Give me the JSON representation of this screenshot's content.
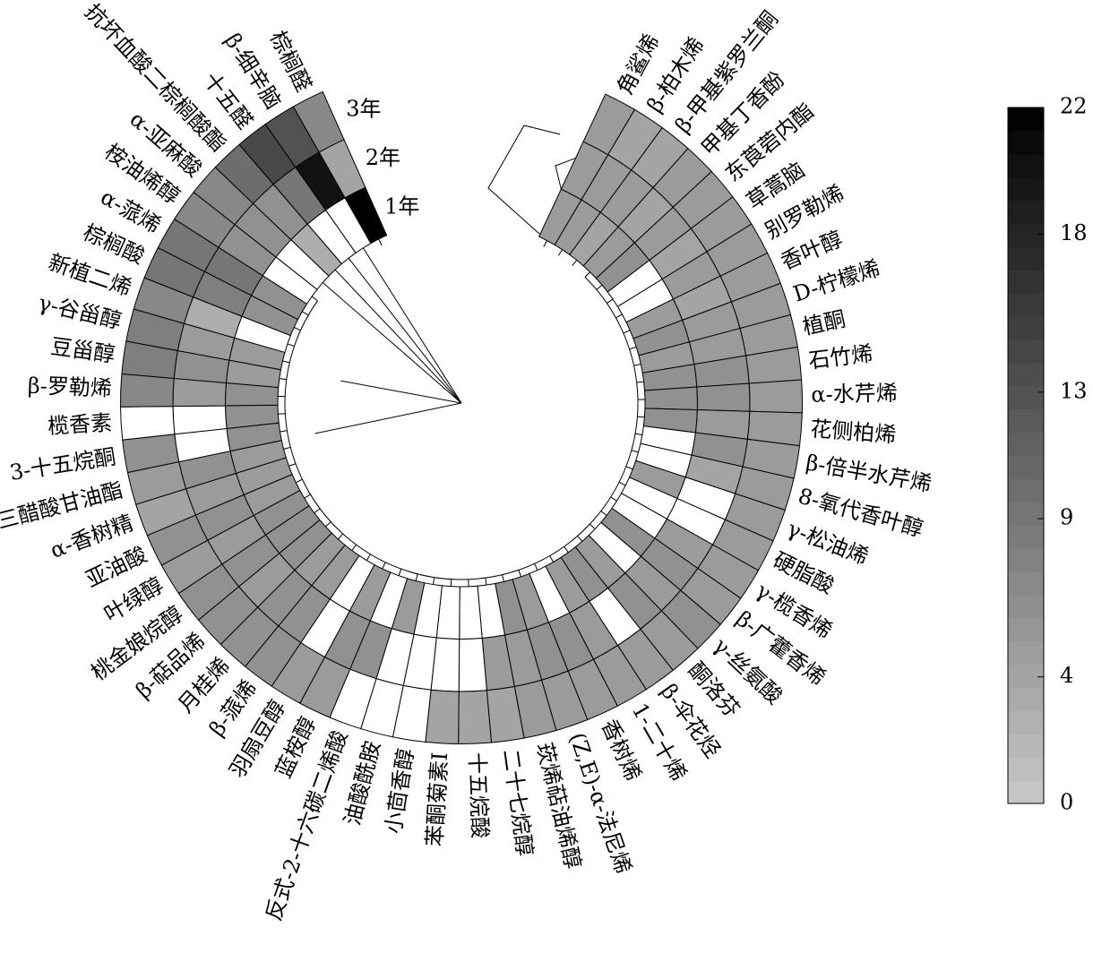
{
  "chart_data": {
    "type": "circular-heatmap",
    "categories": [
      "角鲨烯",
      "β-柏木烯",
      "β-甲基紫罗兰酮",
      "甲基丁香酚",
      "东莨菪内酯",
      "草蒿脑",
      "别罗勒烯",
      "香叶醇",
      "D-柠檬烯",
      "植酮",
      "石竹烯",
      "α-水芹烯",
      "花侧柏烯",
      "β-倍半水芹烯",
      "8-氧代香叶醇",
      "γ-松油烯",
      "硬脂酸",
      "γ-榄香烯",
      "β-广藿香烯",
      "γ-丝氨酸",
      "酮洛芬",
      "β-伞花烃",
      "1-二十烯",
      "香树烯",
      "(Z,E)-α-法尼烯",
      "莰烯萜油烯醇",
      "二十七烷醇",
      "十五烷酸",
      "苯酮菊素I",
      "小茴香醇",
      "油酸酰胺",
      "反式-2-十六碳二烯酸",
      "蓝桉醇",
      "羽扇豆醇",
      "β-蒎烯",
      "月桂烯",
      "β-萜品烯",
      "桃金娘烷醇",
      "叶绿醇",
      "亚油酸",
      "α-香树精",
      "三醋酸甘油酯",
      "3-十五烷酮",
      "榄香素",
      "β-罗勒烯",
      "豆甾醇",
      "γ-谷甾醇",
      "新植二烯",
      "棕榈酸",
      "α-蒎烯",
      "桉油烯醇",
      "α-亚麻酸",
      "抗坏血酸二棕榈酸酯",
      "十五醛",
      "β-细辛脑",
      "棕榈醛"
    ],
    "series": [
      {
        "name": "1年",
        "values": [
          5,
          5,
          4,
          5,
          6,
          null,
          null,
          5,
          6,
          5,
          6,
          6,
          6,
          null,
          null,
          5,
          null,
          null,
          6,
          null,
          5,
          6,
          5,
          null,
          5,
          6,
          null,
          null,
          null,
          null,
          5,
          null,
          5,
          null,
          5,
          5,
          6,
          6,
          6,
          5,
          5,
          5,
          6,
          6,
          6,
          5,
          5,
          null,
          6,
          6,
          null,
          null,
          3,
          null,
          null,
          22
        ]
      },
      {
        "name": "2年",
        "values": [
          5,
          5,
          5,
          4,
          5,
          4,
          5,
          4,
          5,
          5,
          6,
          6,
          5,
          6,
          4,
          null,
          null,
          5,
          6,
          5,
          6,
          null,
          5,
          6,
          6,
          5,
          5,
          null,
          null,
          null,
          null,
          6,
          6,
          null,
          6,
          6,
          5,
          6,
          5,
          6,
          5,
          6,
          null,
          null,
          5,
          6,
          5,
          3,
          8,
          9,
          6,
          6,
          6,
          9,
          20,
          4
        ]
      },
      {
        "name": "3年",
        "values": [
          5,
          4,
          4,
          5,
          5,
          5,
          5,
          5,
          5,
          5,
          5,
          5,
          5,
          5,
          5,
          5,
          5,
          5,
          5,
          6,
          5,
          5,
          5,
          5,
          5,
          5,
          4,
          4,
          4,
          null,
          null,
          null,
          5,
          5,
          6,
          6,
          6,
          6,
          5,
          6,
          4,
          5,
          6,
          null,
          7,
          8,
          8,
          7,
          9,
          9,
          7,
          7,
          10,
          14,
          13,
          7
        ]
      }
    ],
    "colorbar": {
      "lim": [
        0,
        22
      ],
      "ticks": [
        0,
        4,
        9,
        13,
        18,
        22
      ],
      "colors": [
        "#c8c8c8",
        "#000000"
      ],
      "missing_color": "#ffffff"
    }
  }
}
